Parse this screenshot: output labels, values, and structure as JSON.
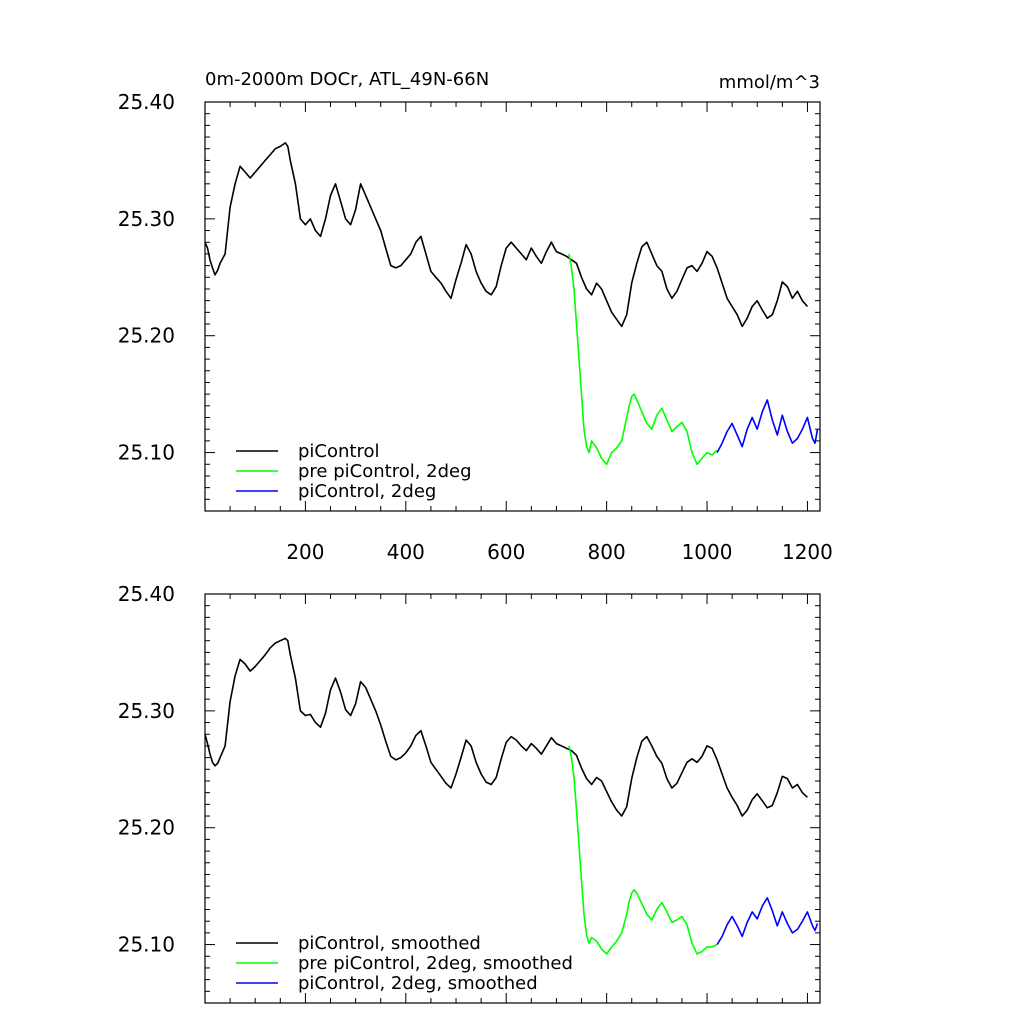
{
  "chart_data": [
    {
      "type": "line",
      "title": "0m-2000m DOCr, ATL_49N-66N",
      "units": "mmol/m^3",
      "xlim": [
        0,
        1225
      ],
      "ylim": [
        25.05,
        25.4
      ],
      "x_ticks": [
        200,
        400,
        600,
        800,
        1000,
        1200
      ],
      "x_tick_labels": [
        "200",
        "400",
        "600",
        "800",
        "1000",
        "1200"
      ],
      "y_ticks": [
        25.1,
        25.2,
        25.3,
        25.4
      ],
      "y_tick_labels": [
        "25.10",
        "25.20",
        "25.30",
        "25.40"
      ],
      "legend_position": "bottom-left",
      "series": [
        {
          "name": "piControl",
          "color": "#000000",
          "x": [
            0,
            5,
            10,
            15,
            20,
            25,
            30,
            40,
            50,
            60,
            70,
            80,
            90,
            100,
            110,
            120,
            130,
            140,
            150,
            160,
            165,
            170,
            180,
            190,
            200,
            210,
            220,
            230,
            240,
            250,
            260,
            270,
            280,
            290,
            300,
            310,
            320,
            330,
            340,
            350,
            360,
            370,
            380,
            390,
            400,
            410,
            420,
            430,
            440,
            450,
            460,
            470,
            480,
            490,
            500,
            510,
            520,
            530,
            540,
            550,
            560,
            570,
            580,
            590,
            600,
            610,
            620,
            630,
            640,
            650,
            660,
            670,
            680,
            690,
            700,
            710,
            720,
            730,
            740,
            750,
            760,
            770,
            780,
            790,
            800,
            810,
            820,
            830,
            840,
            850,
            860,
            870,
            880,
            890,
            900,
            910,
            920,
            930,
            940,
            950,
            960,
            970,
            980,
            990,
            1000,
            1010,
            1020,
            1030,
            1040,
            1050,
            1060,
            1070,
            1080,
            1090,
            1100,
            1110,
            1120,
            1130,
            1140,
            1150,
            1160,
            1170,
            1180,
            1190,
            1200
          ],
          "y": [
            25.28,
            25.275,
            25.265,
            25.258,
            25.252,
            25.256,
            25.262,
            25.27,
            25.31,
            25.33,
            25.345,
            25.34,
            25.335,
            25.34,
            25.345,
            25.35,
            25.355,
            25.36,
            25.362,
            25.365,
            25.362,
            25.35,
            25.33,
            25.3,
            25.295,
            25.3,
            25.29,
            25.285,
            25.3,
            25.32,
            25.33,
            25.315,
            25.3,
            25.295,
            25.308,
            25.33,
            25.32,
            25.31,
            25.3,
            25.29,
            25.275,
            25.26,
            25.258,
            25.26,
            25.265,
            25.27,
            25.28,
            25.285,
            25.27,
            25.255,
            25.25,
            25.245,
            25.238,
            25.232,
            25.248,
            25.262,
            25.278,
            25.27,
            25.255,
            25.245,
            25.238,
            25.235,
            25.242,
            25.26,
            25.275,
            25.28,
            25.275,
            25.27,
            25.265,
            25.275,
            25.268,
            25.262,
            25.272,
            25.28,
            25.272,
            25.27,
            25.268,
            25.265,
            25.262,
            25.25,
            25.24,
            25.235,
            25.245,
            25.24,
            25.23,
            25.22,
            25.214,
            25.208,
            25.218,
            25.245,
            25.262,
            25.276,
            25.28,
            25.27,
            25.26,
            25.255,
            25.24,
            25.232,
            25.238,
            25.248,
            25.258,
            25.26,
            25.255,
            25.262,
            25.272,
            25.268,
            25.258,
            25.245,
            25.232,
            25.225,
            25.218,
            25.208,
            25.215,
            25.225,
            25.23,
            25.222,
            25.215,
            25.218,
            25.23,
            25.246,
            25.242,
            25.232,
            25.238,
            25.23,
            25.225
          ],
          "smoothed_y": [
            25.28,
            25.272,
            25.263,
            25.256,
            25.253,
            25.255,
            25.26,
            25.27,
            25.308,
            25.33,
            25.344,
            25.34,
            25.334,
            25.338,
            25.343,
            25.348,
            25.354,
            25.358,
            25.36,
            25.362,
            25.36,
            25.348,
            25.328,
            25.3,
            25.296,
            25.297,
            25.29,
            25.286,
            25.298,
            25.318,
            25.328,
            25.316,
            25.301,
            25.296,
            25.306,
            25.325,
            25.32,
            25.31,
            25.3,
            25.288,
            25.274,
            25.261,
            25.258,
            25.26,
            25.264,
            25.27,
            25.279,
            25.283,
            25.27,
            25.256,
            25.25,
            25.244,
            25.238,
            25.234,
            25.246,
            25.26,
            25.275,
            25.27,
            25.256,
            25.246,
            25.239,
            25.237,
            25.243,
            25.259,
            25.273,
            25.278,
            25.275,
            25.27,
            25.266,
            25.272,
            25.268,
            25.263,
            25.27,
            25.277,
            25.272,
            25.27,
            25.268,
            25.266,
            25.262,
            25.251,
            25.242,
            25.237,
            25.243,
            25.24,
            25.231,
            25.222,
            25.215,
            25.21,
            25.218,
            25.242,
            25.26,
            25.274,
            25.278,
            25.27,
            25.261,
            25.255,
            25.242,
            25.234,
            25.238,
            25.247,
            25.256,
            25.259,
            25.256,
            25.261,
            25.27,
            25.268,
            25.258,
            25.246,
            25.234,
            25.226,
            25.219,
            25.21,
            25.215,
            25.224,
            25.229,
            25.223,
            25.217,
            25.219,
            25.23,
            25.244,
            25.242,
            25.234,
            25.237,
            25.23,
            25.226
          ]
        },
        {
          "name": "pre piControl, 2deg",
          "color": "#00ff00",
          "x": [
            725,
            730,
            735,
            740,
            745,
            750,
            755,
            760,
            765,
            770,
            780,
            790,
            800,
            810,
            820,
            830,
            840,
            845,
            850,
            855,
            860,
            870,
            880,
            890,
            900,
            910,
            920,
            930,
            940,
            950,
            960,
            970,
            980,
            990,
            1000,
            1010,
            1020
          ],
          "y": [
            25.27,
            25.258,
            25.24,
            25.21,
            25.18,
            25.15,
            25.12,
            25.105,
            25.1,
            25.11,
            25.104,
            25.095,
            25.09,
            25.1,
            25.104,
            25.11,
            25.13,
            25.14,
            25.148,
            25.15,
            25.145,
            25.135,
            25.125,
            25.12,
            25.132,
            25.138,
            25.128,
            25.118,
            25.122,
            25.126,
            25.118,
            25.1,
            25.09,
            25.095,
            25.1,
            25.098,
            25.102
          ],
          "smoothed_y": [
            25.27,
            25.26,
            25.243,
            25.215,
            25.185,
            25.155,
            25.126,
            25.108,
            25.101,
            25.106,
            25.103,
            25.096,
            25.092,
            25.098,
            25.103,
            25.11,
            25.126,
            25.137,
            25.144,
            25.147,
            25.144,
            25.135,
            25.126,
            25.121,
            25.13,
            25.136,
            25.128,
            25.119,
            25.121,
            25.124,
            25.117,
            25.101,
            25.092,
            25.094,
            25.098,
            25.098,
            25.1
          ]
        },
        {
          "name": "piControl, 2deg",
          "color": "#0000ff",
          "x": [
            1020,
            1030,
            1040,
            1050,
            1060,
            1070,
            1080,
            1090,
            1100,
            1110,
            1120,
            1130,
            1140,
            1150,
            1160,
            1170,
            1180,
            1190,
            1200,
            1210,
            1215,
            1220
          ],
          "y": [
            25.1,
            25.108,
            25.118,
            25.125,
            25.115,
            25.105,
            25.12,
            25.13,
            25.12,
            25.135,
            25.145,
            25.128,
            25.115,
            25.132,
            25.118,
            25.108,
            25.112,
            25.12,
            25.13,
            25.112,
            25.108,
            25.12
          ],
          "smoothed_y": [
            25.1,
            25.107,
            25.117,
            25.124,
            25.116,
            25.107,
            25.119,
            25.128,
            25.122,
            25.133,
            25.14,
            25.129,
            25.116,
            25.128,
            25.118,
            25.11,
            25.113,
            25.12,
            25.128,
            25.116,
            25.112,
            25.118
          ]
        }
      ]
    },
    {
      "type": "line",
      "xlim": [
        0,
        1225
      ],
      "ylim": [
        25.05,
        25.4
      ],
      "y_ticks": [
        25.1,
        25.2,
        25.3,
        25.4
      ],
      "y_tick_labels": [
        "25.10",
        "25.20",
        "25.30",
        "25.40"
      ],
      "legend_position": "bottom-left",
      "series": [
        {
          "name": "piControl, smoothed",
          "color": "#000000",
          "from": "piControl"
        },
        {
          "name": "pre piControl, 2deg, smoothed",
          "color": "#00ff00",
          "from": "pre piControl, 2deg"
        },
        {
          "name": "piControl, 2deg, smoothed",
          "color": "#0000ff",
          "from": "piControl, 2deg"
        }
      ]
    }
  ]
}
